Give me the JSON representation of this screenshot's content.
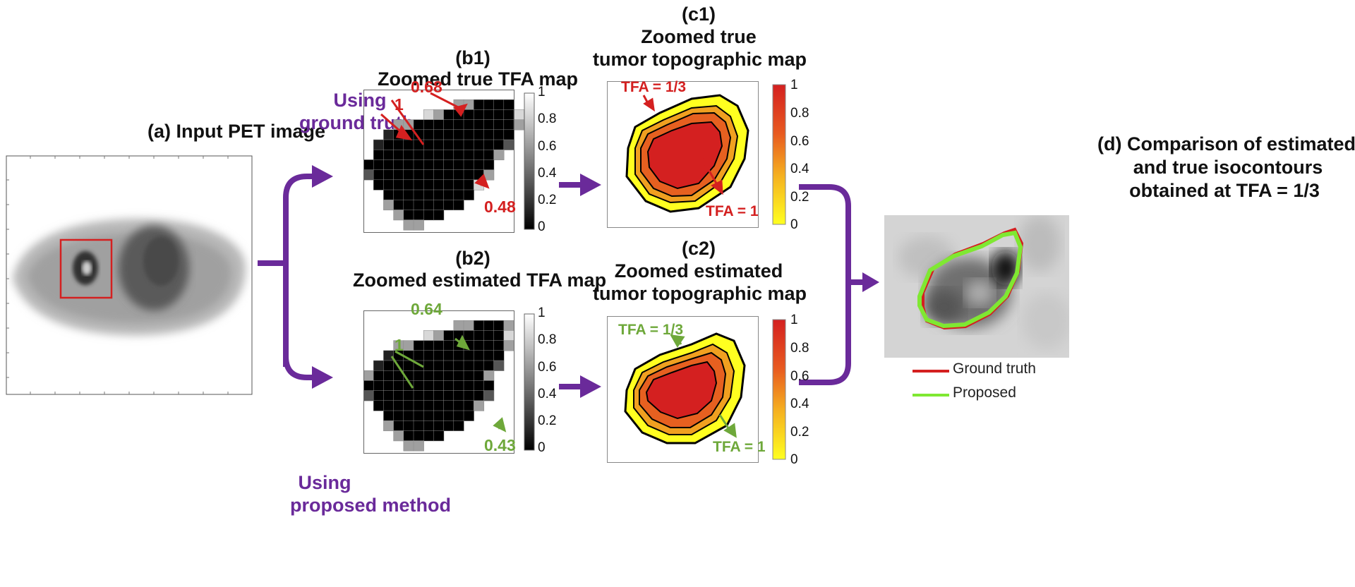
{
  "panels": {
    "a": {
      "title": "(a) Input PET image"
    },
    "b1": {
      "tag": "(b1)",
      "title": "Zoomed true TFA map",
      "annotations": [
        "0.68",
        "1",
        "0.48"
      ]
    },
    "b2": {
      "tag": "(b2)",
      "title": "Zoomed estimated TFA map",
      "annotations": [
        "0.64",
        "1",
        "0.43"
      ]
    },
    "c1": {
      "tag": "(c1)",
      "title_line1": "Zoomed true",
      "title_line2": "tumor topographic map",
      "annotations": [
        "TFA = 1/3",
        "TFA = 1"
      ]
    },
    "c2": {
      "tag": "(c2)",
      "title_line1": "Zoomed estimated",
      "title_line2": "tumor topographic map",
      "annotations": [
        "TFA = 1/3",
        "TFA = 1"
      ]
    },
    "d": {
      "title_line1": "(d) Comparison of estimated",
      "title_line2": "and true isocontours",
      "title_line3": "obtained at TFA = 1/3"
    }
  },
  "branches": {
    "top_line1": "Using",
    "top_line2": "ground truth",
    "bottom_line1": "Using",
    "bottom_line2": "proposed method"
  },
  "colorbars": {
    "gray_ticks": [
      "1",
      "0.8",
      "0.6",
      "0.4",
      "0.2",
      "0"
    ],
    "heat_ticks": [
      "1",
      "0.8",
      "0.6",
      "0.4",
      "0.2",
      "0"
    ]
  },
  "legend": {
    "items": [
      {
        "label": "Ground truth",
        "color": "#d42020"
      },
      {
        "label": "Proposed",
        "color": "#7fe832"
      }
    ]
  },
  "colors": {
    "arrow": "#6a2a9a",
    "annotation_true": "#d42020",
    "annotation_estimated": "#6ea83a",
    "heat_high": "#d42020",
    "heat_low": "#ffff20"
  }
}
